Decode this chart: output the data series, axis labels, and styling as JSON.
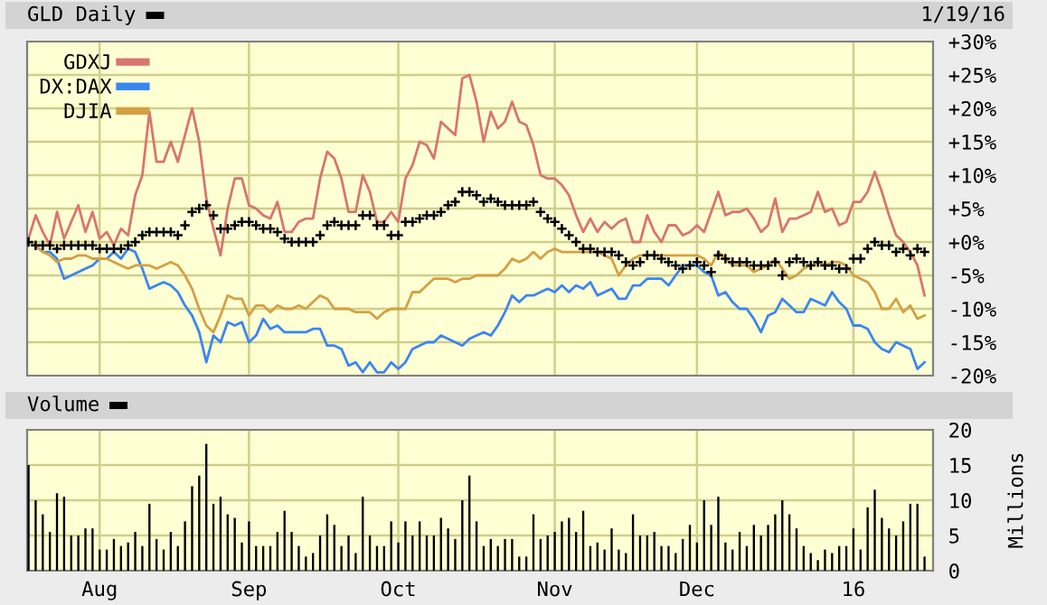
{
  "chart_data": [
    {
      "type": "line",
      "title": "GLD Daily",
      "annotations": [
        "1/19/16"
      ],
      "tick_labels": "y",
      "grid": true,
      "legend": "top left",
      "categories": [
        null,
        null,
        null,
        null,
        null,
        null,
        null,
        null,
        null,
        null,
        null,
        null,
        null,
        null,
        null,
        null,
        null,
        null,
        null,
        null,
        null,
        null,
        null,
        null,
        null,
        null,
        null,
        null,
        null,
        null,
        null,
        null,
        null,
        null,
        null,
        null,
        null,
        null,
        null,
        null,
        null,
        null,
        null,
        null,
        null,
        null,
        null,
        null,
        null,
        null,
        null,
        null,
        null,
        null,
        null,
        null,
        null,
        null,
        null,
        null,
        null,
        null,
        null,
        null,
        null,
        null,
        null,
        null,
        null,
        null,
        null,
        null,
        null,
        null,
        null,
        null,
        null,
        null,
        null,
        null,
        null,
        null,
        null,
        null,
        null,
        null,
        null,
        null,
        null,
        null,
        null,
        null,
        null,
        null,
        null,
        null,
        null,
        null,
        null,
        null,
        null,
        null,
        null,
        null,
        null,
        null,
        null,
        null,
        null,
        null,
        null,
        null,
        null,
        null,
        null,
        null,
        null,
        null,
        null,
        null,
        null,
        null,
        null,
        null,
        null,
        null,
        null
      ],
      "ylim": [
        -20,
        30
      ],
      "yticks": [
        {
          "value": 30,
          "label": "+30%"
        },
        {
          "value": 25,
          "label": "+25%"
        },
        {
          "value": 20,
          "label": "+20%"
        },
        {
          "value": 15,
          "label": "+15%"
        },
        {
          "value": 10,
          "label": "+10%"
        },
        {
          "value": 5,
          "label": "+5%"
        },
        {
          "value": 0,
          "label": "+0%"
        },
        {
          "value": -5,
          "label": "-5%"
        },
        {
          "value": -10,
          "label": "-10%"
        },
        {
          "value": -15,
          "label": "-15%"
        },
        {
          "value": -20,
          "label": "-20%"
        }
      ],
      "series": [
        {
          "name": "GDXJ",
          "color": "#d8756e",
          "values": [
            0.5,
            4,
            1.5,
            -0.5,
            4.5,
            0.5,
            3,
            5.5,
            1.5,
            4.5,
            0.5,
            1.5,
            -0.5,
            2,
            1,
            7,
            10,
            19.5,
            12,
            12,
            15,
            12,
            16,
            20,
            15,
            6.5,
            2,
            -2,
            5,
            9.5,
            9.5,
            5.5,
            5,
            4,
            3.5,
            6,
            1.5,
            1.5,
            3,
            3.5,
            3.5,
            9.5,
            13.5,
            12.5,
            9.5,
            4.5,
            4.5,
            10,
            7.5,
            3,
            3,
            4.5,
            3,
            9.5,
            11.5,
            15,
            14.5,
            12.5,
            18,
            17,
            16,
            24.5,
            25,
            21,
            15,
            19.5,
            17,
            18,
            21,
            18,
            17.5,
            14.5,
            10,
            9.5,
            9.5,
            8.5,
            7,
            4,
            1.5,
            3.5,
            1.5,
            3,
            2,
            3,
            3.5,
            0,
            0,
            4,
            1.5,
            0,
            2.5,
            2.5,
            1,
            1.5,
            2.5,
            1.5,
            4.5,
            7.5,
            4,
            4.5,
            4.5,
            5,
            3.5,
            1.5,
            2.5,
            6.5,
            1.5,
            3.5,
            3.5,
            4,
            4.5,
            7.5,
            4.5,
            5,
            2.5,
            3,
            6,
            6,
            7.5,
            10.5,
            7.5,
            4,
            1,
            0,
            -1.5,
            -3.5,
            -8
          ]
        },
        {
          "name": "DX:DAX",
          "color": "#3a86f0",
          "values": [
            0,
            -0.5,
            -1.5,
            -1.5,
            -2.5,
            -5.5,
            -5,
            -4.5,
            -4,
            -3.5,
            -2.5,
            -2.5,
            -1.5,
            -2.5,
            -1,
            -1.5,
            -4,
            -7,
            -6.5,
            -6,
            -6.5,
            -7.5,
            -9.5,
            -11,
            -13.5,
            -18,
            -14,
            -15,
            -12,
            -12.5,
            -12,
            -15,
            -14,
            -11.5,
            -13,
            -12.5,
            -13.5,
            -13.5,
            -13.5,
            -13.5,
            -13,
            -13,
            -15.5,
            -15.5,
            -16,
            -18.5,
            -18,
            -19.5,
            -18,
            -19.5,
            -19.5,
            -18,
            -19,
            -18,
            -16,
            -15.5,
            -15,
            -15,
            -14,
            -14.5,
            -15,
            -15.5,
            -14.5,
            -14,
            -13.5,
            -14,
            -12.5,
            -10.5,
            -8,
            -9,
            -8,
            -8,
            -7.5,
            -7,
            -7.5,
            -6.5,
            -7.5,
            -6.5,
            -7,
            -6,
            -8,
            -7.5,
            -7,
            -8.5,
            -8.5,
            -6.5,
            -6.5,
            -5.5,
            -5.5,
            -5.5,
            -6.5,
            -5,
            -3.5,
            -3.5,
            -3.5,
            -4.5,
            -5,
            -8,
            -7.5,
            -9,
            -10,
            -10,
            -11.5,
            -13.5,
            -11,
            -10.5,
            -8.5,
            -9.5,
            -10.5,
            -10.5,
            -8.5,
            -9,
            -9.5,
            -7.5,
            -9,
            -10,
            -12.5,
            -12.5,
            -13,
            -15,
            -16,
            -16.5,
            -15,
            -15.5,
            -16,
            -19,
            -18
          ]
        },
        {
          "name": "DJIA",
          "color": "#d4a043",
          "values": [
            0,
            -0.5,
            -1.5,
            -2,
            -3,
            -2.5,
            -2.5,
            -2,
            -2,
            -2.5,
            -2.5,
            -2.5,
            -3,
            -3.5,
            -4,
            -3.5,
            -3.5,
            -3.5,
            -4,
            -3.5,
            -3,
            -3.5,
            -5,
            -7,
            -10,
            -12.5,
            -13.5,
            -11,
            -8,
            -8.5,
            -8.5,
            -11,
            -9.5,
            -9.5,
            -10.5,
            -9.5,
            -10,
            -10,
            -9.5,
            -10,
            -9,
            -8,
            -8.5,
            -10,
            -10,
            -10,
            -10.5,
            -10.5,
            -10.5,
            -11.5,
            -10.5,
            -10,
            -10,
            -10,
            -7.5,
            -7.5,
            -6.5,
            -5.5,
            -5.5,
            -5.5,
            -6,
            -5.5,
            -5.5,
            -5,
            -5,
            -5,
            -5,
            -4,
            -2.5,
            -3,
            -2.5,
            -1.5,
            -2.5,
            -1.5,
            -1,
            -1.5,
            -1.5,
            -1.5,
            -1.5,
            -1.5,
            -1.5,
            -2,
            -2.5,
            -5,
            -3.5,
            -2.5,
            -2,
            -2,
            -2,
            -2,
            -2,
            -2,
            -2,
            -2,
            -2,
            -2.5,
            -3.5,
            -1.5,
            -2.5,
            -3.5,
            -3.5,
            -3.5,
            -4.5,
            -4,
            -3.5,
            -2.5,
            -4,
            -5.5,
            -5,
            -4,
            -3.5,
            -3,
            -3.5,
            -3,
            -3,
            -3.5,
            -5,
            -5.5,
            -6,
            -7.5,
            -10,
            -10,
            -8.5,
            -10.5,
            -9.5,
            -11.5,
            -11
          ]
        },
        {
          "type": "scatter",
          "marker": "cross",
          "color": "#000000",
          "values": [
            0,
            -0.5,
            -0.5,
            -0.5,
            -1,
            -0.5,
            -0.5,
            -0.5,
            -0.5,
            -0.5,
            -1,
            -1,
            -1,
            -1,
            -0.5,
            0,
            1,
            1.5,
            1.5,
            1.5,
            1.5,
            1,
            2.5,
            4.5,
            5,
            5.5,
            4,
            2,
            2,
            2.5,
            3,
            3,
            2.5,
            2,
            2,
            1.5,
            0.5,
            0,
            0,
            0,
            0,
            1,
            2.5,
            3,
            2.5,
            2.5,
            2.5,
            4,
            4,
            2.5,
            2.5,
            1,
            1,
            3,
            3,
            3.5,
            4,
            4,
            4.5,
            5.5,
            6,
            7.5,
            7.5,
            7,
            6,
            6.5,
            6,
            5.5,
            5.5,
            5.5,
            5.5,
            6,
            4.5,
            3.5,
            3,
            2,
            1,
            0,
            -1,
            -1,
            -1.5,
            -1.5,
            -1.5,
            -2,
            -3,
            -3.5,
            -3,
            -2,
            -2,
            -2.5,
            -3,
            -3.5,
            -4,
            -3.5,
            -3,
            -3.5,
            -4.5,
            -2,
            -2.5,
            -3,
            -3,
            -3,
            -3.5,
            -3.5,
            -3.5,
            -3,
            -5,
            -3,
            -2.5,
            -3,
            -3.5,
            -3,
            -3.5,
            -3.5,
            -4,
            -4,
            -2.5,
            -2.5,
            -1,
            0,
            -0.5,
            -0.5,
            -1.5,
            -1,
            -2,
            -1,
            -1.5
          ]
        }
      ]
    },
    {
      "type": "bar",
      "title": "Volume",
      "ylabel": "Millions",
      "grid": true,
      "categories": [
        null,
        null,
        null,
        null,
        null,
        null,
        null,
        null,
        null,
        null,
        "Aug",
        null,
        null,
        null,
        null,
        null,
        null,
        null,
        null,
        null,
        null,
        null,
        null,
        null,
        null,
        null,
        null,
        null,
        null,
        null,
        null,
        "Sep",
        null,
        null,
        null,
        null,
        null,
        null,
        null,
        null,
        null,
        null,
        null,
        null,
        null,
        null,
        null,
        null,
        null,
        null,
        null,
        null,
        "Oct",
        null,
        null,
        null,
        null,
        null,
        null,
        null,
        null,
        null,
        null,
        null,
        null,
        null,
        null,
        null,
        null,
        null,
        null,
        null,
        null,
        null,
        "Nov",
        null,
        null,
        null,
        null,
        null,
        null,
        null,
        null,
        null,
        null,
        null,
        null,
        null,
        null,
        null,
        null,
        null,
        null,
        null,
        "Dec",
        null,
        null,
        null,
        null,
        null,
        null,
        null,
        null,
        null,
        null,
        null,
        null,
        null,
        null,
        null,
        null,
        null,
        null,
        null,
        null,
        null,
        "16",
        null,
        null,
        null,
        null,
        null,
        null,
        null,
        null,
        null,
        null
      ],
      "ylim": [
        0,
        20
      ],
      "yticks": [
        0,
        5,
        10,
        15,
        20
      ],
      "series": [
        {
          "color": "#000000",
          "values": [
            15,
            10,
            8,
            5.5,
            11,
            10.5,
            5,
            5,
            6,
            6,
            3,
            3,
            4.5,
            3.5,
            4,
            5.5,
            3.5,
            9.5,
            4.5,
            3,
            5.5,
            3.5,
            7,
            12,
            13.5,
            18,
            9.5,
            10.5,
            8,
            7.5,
            4,
            7,
            3.5,
            3.5,
            3.5,
            5.5,
            8.5,
            5.5,
            3.5,
            2,
            2.5,
            5,
            8,
            6.5,
            3.5,
            5,
            2.5,
            10.5,
            5,
            3.5,
            3.5,
            7,
            4,
            7,
            5,
            7,
            5,
            5,
            7.5,
            6,
            4.5,
            10,
            13.5,
            7,
            3.5,
            4.5,
            3.5,
            4.5,
            4.5,
            2,
            2,
            8,
            4.5,
            5,
            5.5,
            7,
            7.5,
            5.5,
            8.5,
            3.5,
            4,
            3,
            6,
            3,
            2.5,
            8,
            5,
            5,
            5.5,
            3.5,
            3.5,
            2.5,
            4.5,
            6.5,
            4,
            10,
            6.5,
            10.5,
            4,
            3,
            5.5,
            3.5,
            6.5,
            5,
            6.5,
            8,
            10,
            8,
            6,
            3.5,
            2.5,
            1.5,
            3,
            2.5,
            3.5,
            3.5,
            6,
            3,
            9,
            11.5,
            7.5,
            6,
            5,
            7,
            9.5,
            9.5,
            2
          ]
        }
      ]
    }
  ]
}
